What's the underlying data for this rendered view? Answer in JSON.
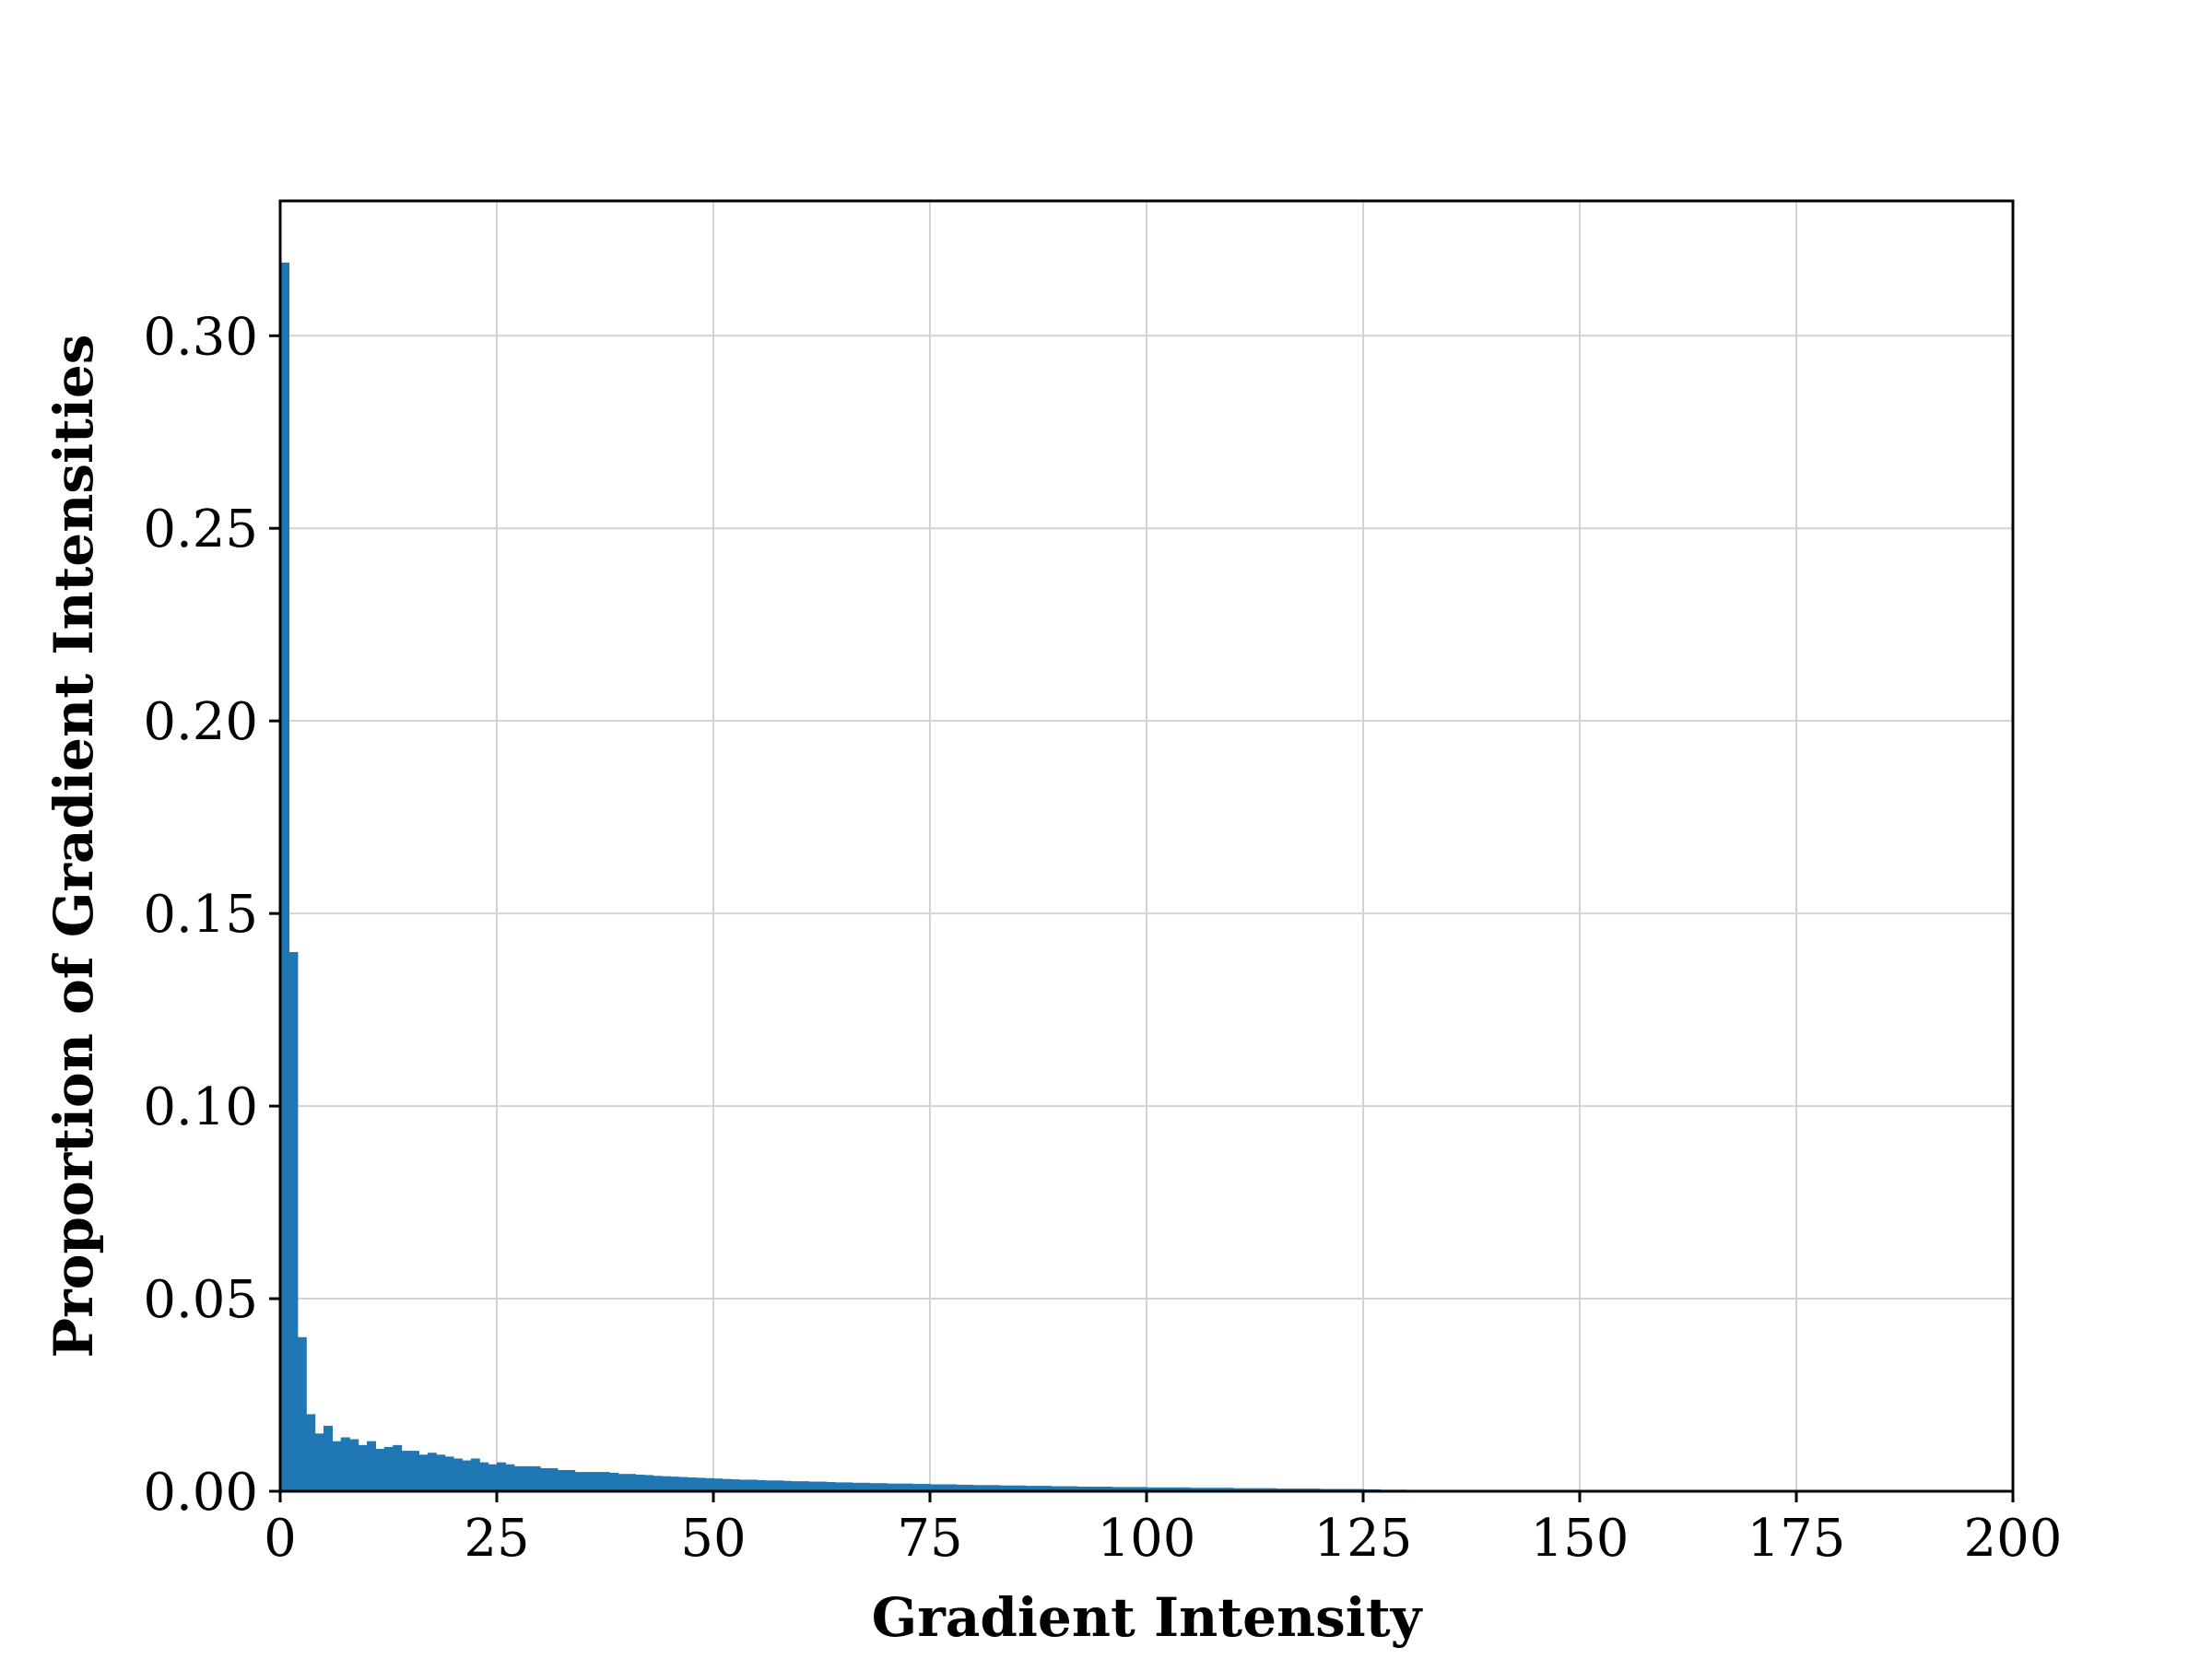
{
  "chart_data": {
    "type": "bar",
    "title": "",
    "xlabel": "Gradient Intensity",
    "ylabel": "Proportion of Gradient Intensities",
    "xlim": [
      0,
      200
    ],
    "ylim": [
      0,
      0.335
    ],
    "grid": true,
    "bar_color": "#1f77b4",
    "x_ticks": [
      "0",
      "25",
      "50",
      "75",
      "100",
      "125",
      "150",
      "175",
      "200"
    ],
    "y_ticks": [
      "0.00",
      "0.05",
      "0.10",
      "0.15",
      "0.20",
      "0.25",
      "0.30"
    ],
    "bin_width": 1,
    "bins_start": [
      0,
      1,
      2,
      3,
      4,
      5,
      6,
      7,
      8,
      9,
      10,
      11,
      12,
      13,
      14,
      15,
      16,
      17,
      18,
      19,
      20,
      21,
      22,
      23,
      24,
      25,
      26,
      27,
      28,
      29,
      30,
      31,
      32,
      33,
      34,
      35,
      36,
      37,
      38,
      39,
      40,
      41,
      42,
      43,
      44,
      45,
      46,
      47,
      48,
      49,
      50,
      51,
      52,
      53,
      54,
      55,
      56,
      57,
      58,
      59,
      60,
      61,
      62,
      63,
      64,
      65,
      66,
      67,
      68,
      69,
      70,
      71,
      72,
      73,
      74,
      75,
      76,
      77,
      78,
      79,
      80,
      81,
      82,
      83,
      84,
      85,
      86,
      87,
      88,
      89,
      90,
      91,
      92,
      93,
      94,
      95,
      96,
      97,
      98,
      99,
      100,
      101,
      102,
      103,
      104,
      105,
      106,
      107,
      108,
      109,
      110,
      111,
      112,
      113,
      114,
      115,
      116,
      117,
      118,
      119,
      120,
      121,
      122,
      123,
      124,
      125,
      126,
      127,
      128,
      129,
      130,
      131,
      132,
      133,
      134,
      135,
      136,
      137,
      138,
      139,
      140,
      141,
      142,
      143,
      144,
      145,
      146,
      147,
      148,
      149,
      150,
      151,
      152
    ],
    "values": [
      0.319,
      0.14,
      0.04,
      0.02,
      0.015,
      0.017,
      0.013,
      0.014,
      0.0135,
      0.012,
      0.013,
      0.011,
      0.0115,
      0.012,
      0.0105,
      0.0105,
      0.0095,
      0.01,
      0.0095,
      0.009,
      0.0085,
      0.008,
      0.0085,
      0.0075,
      0.007,
      0.0075,
      0.007,
      0.0065,
      0.0065,
      0.0065,
      0.006,
      0.006,
      0.0055,
      0.0055,
      0.005,
      0.005,
      0.005,
      0.005,
      0.0048,
      0.0045,
      0.0045,
      0.0043,
      0.0042,
      0.004,
      0.0039,
      0.0038,
      0.0037,
      0.0036,
      0.0035,
      0.0034,
      0.0033,
      0.0032,
      0.0031,
      0.003,
      0.003,
      0.0029,
      0.0028,
      0.0028,
      0.0027,
      0.0026,
      0.0026,
      0.0025,
      0.0025,
      0.0024,
      0.0023,
      0.0023,
      0.0022,
      0.0022,
      0.0021,
      0.0021,
      0.002,
      0.002,
      0.002,
      0.0019,
      0.0019,
      0.0018,
      0.0018,
      0.0018,
      0.0017,
      0.0017,
      0.0016,
      0.0016,
      0.0016,
      0.0015,
      0.0015,
      0.0015,
      0.0014,
      0.0014,
      0.0014,
      0.0013,
      0.0013,
      0.0013,
      0.0012,
      0.0012,
      0.0012,
      0.0012,
      0.0011,
      0.0011,
      0.0011,
      0.0011,
      0.001,
      0.001,
      0.001,
      0.001,
      0.001,
      0.0009,
      0.0009,
      0.0009,
      0.0009,
      0.0009,
      0.0008,
      0.0008,
      0.0008,
      0.0008,
      0.0008,
      0.0007,
      0.0007,
      0.0007,
      0.0007,
      0.0007,
      0.0006,
      0.0006,
      0.0006,
      0.0006,
      0.0006,
      0.0005,
      0.0005,
      0.0004,
      0.0004,
      0.0004,
      0.0003,
      0.0003,
      0.0003,
      0.0003,
      0.0003,
      0.0003,
      0.0003,
      0.0003,
      0.0003,
      0.0003,
      0.0003,
      0.0003,
      0.0003,
      0.0003,
      0.0003,
      0.0003,
      0.0003,
      0.0003,
      0.0003,
      0.0002,
      0.0002,
      0.0002,
      0.0002
    ]
  }
}
